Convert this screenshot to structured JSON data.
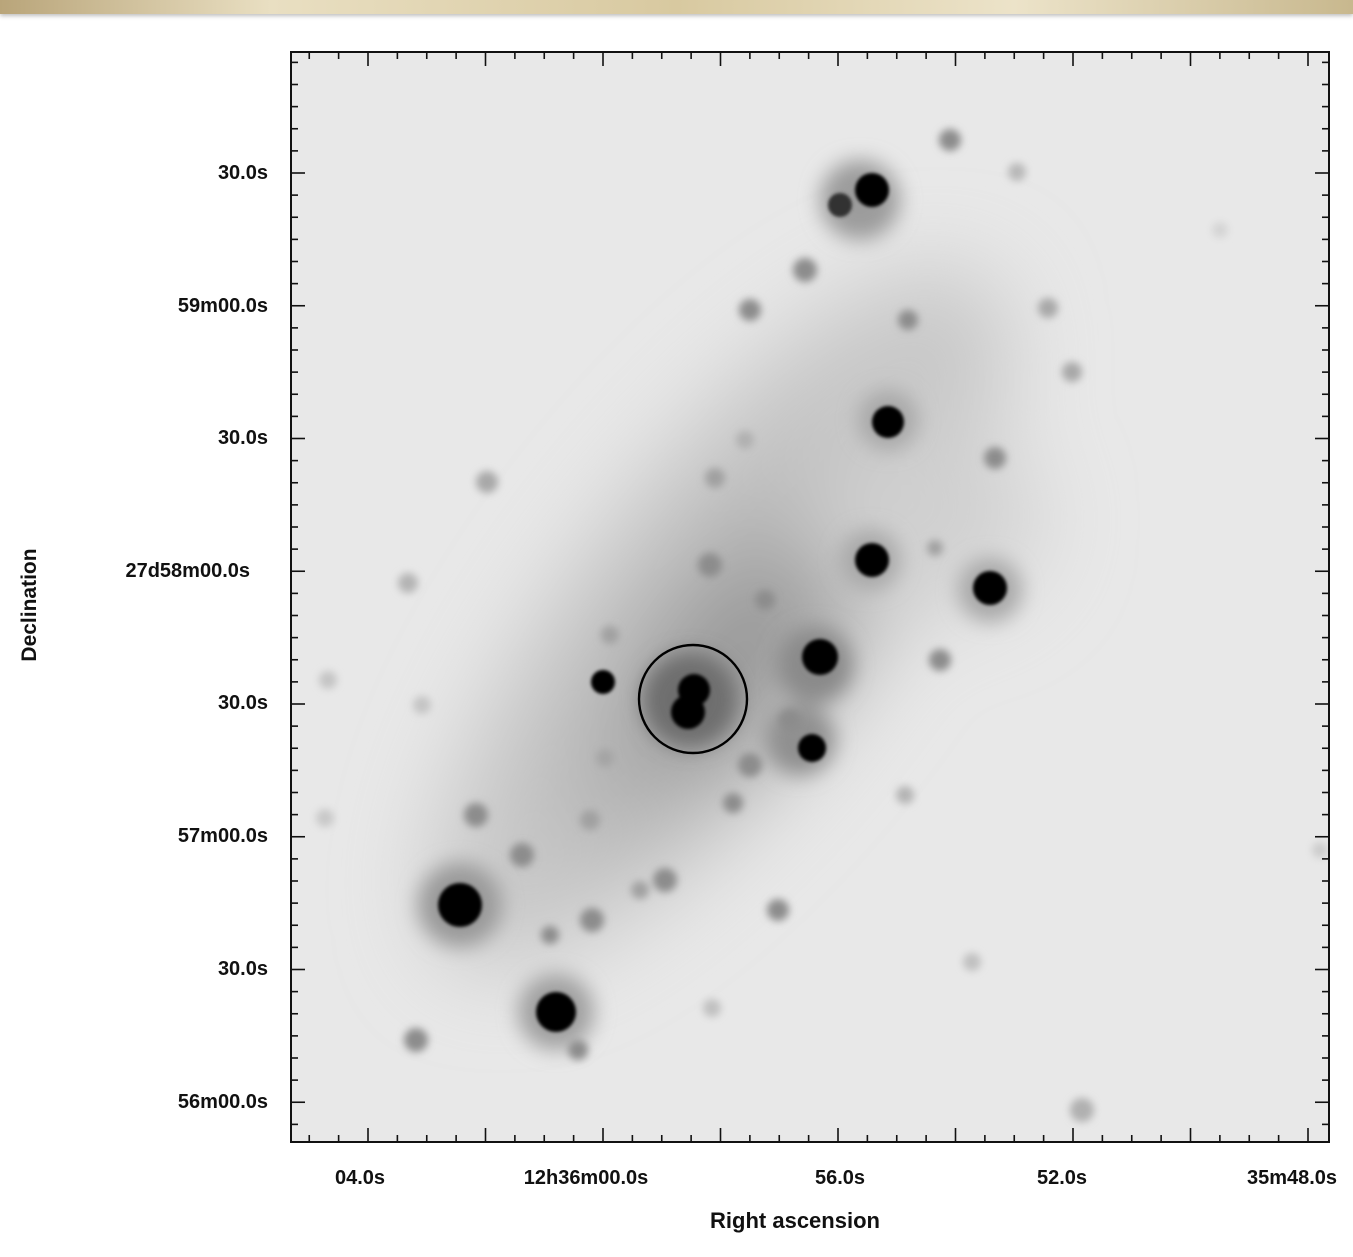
{
  "figure": {
    "x_axis_title": "Right ascension",
    "y_axis_title": "Declination",
    "x_tick_labels": [
      "04.0s",
      "12h36m00.0s",
      "56.0s",
      "52.0s",
      "35m48.0s"
    ],
    "y_tick_labels": [
      "30.0s",
      "59m00.0s",
      "30.0s",
      "27d58m00.0s",
      "30.0s",
      "57m00.0s",
      "30.0s",
      "56m00.0s"
    ],
    "colors": {
      "sky_background": "#e8e8e8",
      "frame": "#111111",
      "marker_circle": "#000000",
      "top_strip": "#d8c9a0"
    },
    "marker": "open circle around central source"
  }
}
